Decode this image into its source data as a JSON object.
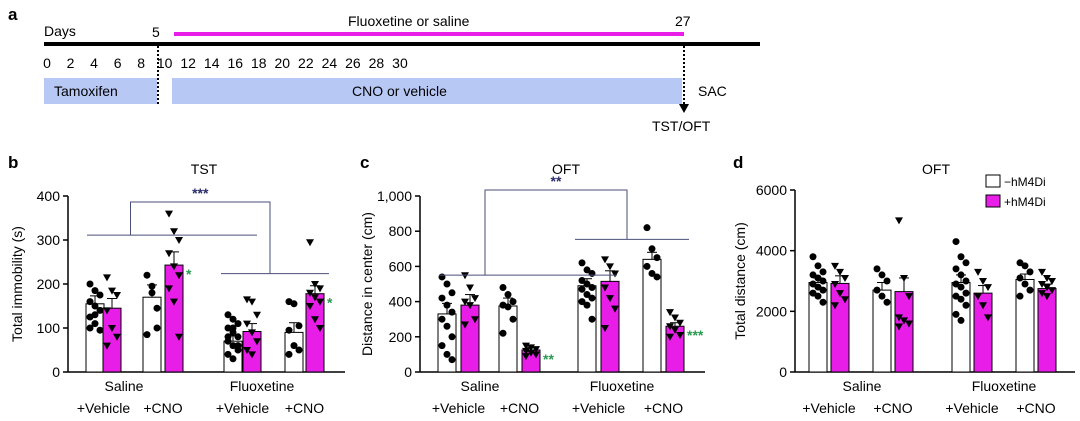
{
  "colors": {
    "magenta": "#e81ee8",
    "timeline_bar": "#b8c8f5",
    "axis": "#000000",
    "bracket": "#4a4f7a",
    "sig_dark": "#2c2c6a",
    "sig_green": "#2a9a52"
  },
  "panel_a": {
    "label": "a",
    "days_label": "Days",
    "start_label": "5",
    "end_label": "27",
    "treatment_label": "Fluoxetine or saline",
    "ticks": [
      "0",
      "2",
      "4",
      "6",
      "8",
      "10",
      "12",
      "14",
      "16",
      "18",
      "20",
      "22",
      "24",
      "26",
      "28",
      "30"
    ],
    "tamoxifen_label": "Tamoxifen",
    "cno_label": "CNO or vehicle",
    "sac_label": "SAC",
    "test_label": "TST/OFT"
  },
  "legend": {
    "empty": "−hM4Di",
    "filled": "+hM4Di"
  },
  "chart_data": [
    {
      "panel": "b",
      "type": "bar",
      "title": "TST",
      "ylabel": "Total immobility (s)",
      "ylim": [
        0,
        400
      ],
      "yticks": [
        "0",
        "100",
        "200",
        "300",
        "400"
      ],
      "groups": [
        "Saline",
        "Fluoxetine"
      ],
      "conditions": [
        "+Vehicle",
        "+CNO",
        "+Vehicle",
        "+CNO"
      ],
      "series": [
        {
          "name": "−hM4Di",
          "values": [
            155,
            170,
            70,
            90
          ],
          "errors": [
            18,
            28,
            12,
            22
          ]
        },
        {
          "name": "+hM4Di",
          "values": [
            145,
            243,
            92,
            178
          ],
          "errors": [
            22,
            30,
            18,
            18
          ]
        }
      ],
      "annotations": [
        {
          "text": "***",
          "between": "Saline vs Fluoxetine",
          "color": "sig_dark"
        },
        {
          "text": "*",
          "at": "Saline +CNO +hM4Di",
          "color": "sig_green"
        },
        {
          "text": "*",
          "at": "Fluoxetine +CNO +hM4Di",
          "color": "sig_green"
        }
      ],
      "points": [
        {
          "bar": 0,
          "values": [
            200,
            185,
            175,
            160,
            150,
            140,
            125,
            110,
            95,
            100,
            130
          ]
        },
        {
          "bar": 1,
          "values": [
            215,
            185,
            175,
            140,
            100,
            80,
            60
          ]
        },
        {
          "bar": 2,
          "values": [
            220,
            195,
            145,
            85,
            180,
            100
          ]
        },
        {
          "bar": 3,
          "values": [
            360,
            320,
            300,
            270,
            240,
            220,
            190,
            160,
            80
          ]
        },
        {
          "bar": 4,
          "values": [
            130,
            120,
            110,
            100,
            90,
            80,
            70,
            60,
            50,
            40,
            30,
            60,
            80,
            100
          ]
        },
        {
          "bar": 5,
          "values": [
            165,
            160,
            130,
            110,
            90,
            70,
            50,
            40
          ]
        },
        {
          "bar": 6,
          "values": [
            160,
            155,
            105,
            95,
            60,
            50,
            40
          ]
        },
        {
          "bar": 7,
          "values": [
            295,
            200,
            190,
            180,
            170,
            160,
            150,
            120,
            100
          ]
        }
      ]
    },
    {
      "panel": "c",
      "type": "bar",
      "title": "OFT",
      "ylabel": "Distance in center (cm)",
      "ylim": [
        0,
        1000
      ],
      "yticks": [
        "0",
        "200",
        "400",
        "600",
        "800",
        "1,000"
      ],
      "groups": [
        "Saline",
        "Fluoxetine"
      ],
      "conditions": [
        "+Vehicle",
        "+CNO",
        "+Vehicle",
        "+CNO"
      ],
      "series": [
        {
          "name": "−hM4Di",
          "values": [
            330,
            375,
            490,
            640
          ],
          "errors": [
            60,
            45,
            40,
            40
          ]
        },
        {
          "name": "+hM4Di",
          "values": [
            380,
            125,
            515,
            260
          ],
          "errors": [
            60,
            15,
            60,
            20
          ]
        }
      ],
      "annotations": [
        {
          "text": "**",
          "between": "Saline vs Fluoxetine",
          "color": "sig_dark"
        },
        {
          "text": "**",
          "at": "Saline +CNO +hM4Di",
          "color": "sig_green"
        },
        {
          "text": "***",
          "at": "Fluoxetine +CNO +hM4Di",
          "color": "sig_green"
        }
      ],
      "points": [
        {
          "bar": 0,
          "values": [
            540,
            500,
            450,
            420,
            380,
            340,
            300,
            260,
            200,
            150,
            100,
            70
          ]
        },
        {
          "bar": 1,
          "values": [
            550,
            480,
            420,
            400,
            380,
            300,
            270
          ]
        },
        {
          "bar": 2,
          "values": [
            480,
            440,
            400,
            380,
            370,
            300,
            220
          ]
        },
        {
          "bar": 3,
          "values": [
            150,
            140,
            130,
            120,
            110,
            100,
            90
          ]
        },
        {
          "bar": 4,
          "values": [
            620,
            580,
            560,
            520,
            500,
            480,
            470,
            440,
            420,
            400,
            380,
            300
          ]
        },
        {
          "bar": 5,
          "values": [
            640,
            600,
            560,
            480,
            420,
            360,
            250
          ]
        },
        {
          "bar": 6,
          "values": [
            820,
            700,
            650,
            600,
            560,
            540
          ]
        },
        {
          "bar": 7,
          "values": [
            340,
            310,
            280,
            260,
            240,
            210,
            200
          ]
        }
      ]
    },
    {
      "panel": "d",
      "type": "bar",
      "title": "OFT",
      "ylabel": "Total distance (cm)",
      "ylim": [
        0,
        6000
      ],
      "yticks": [
        "0",
        "2000",
        "4000",
        "6000"
      ],
      "groups": [
        "Saline",
        "Fluoxetine"
      ],
      "conditions": [
        "+Vehicle",
        "+CNO",
        "+Vehicle",
        "+CNO"
      ],
      "series": [
        {
          "name": "−hM4Di",
          "values": [
            2950,
            2700,
            2950,
            3050
          ],
          "errors": [
            150,
            250,
            250,
            180
          ]
        },
        {
          "name": "+hM4Di",
          "values": [
            2920,
            2650,
            2600,
            2750
          ],
          "errors": [
            250,
            450,
            250,
            150
          ]
        }
      ],
      "annotations": [],
      "points": [
        {
          "bar": 0,
          "values": [
            3800,
            3500,
            3300,
            3200,
            3100,
            3000,
            2900,
            2800,
            2700,
            2600,
            2500,
            2300
          ]
        },
        {
          "bar": 1,
          "values": [
            3500,
            3300,
            3100,
            2900,
            2600,
            2400,
            2200
          ]
        },
        {
          "bar": 2,
          "values": [
            3400,
            3200,
            3000,
            2700,
            2500,
            2300
          ]
        },
        {
          "bar": 3,
          "values": [
            5000,
            3100,
            2500,
            1800,
            1700,
            1600,
            1500
          ]
        },
        {
          "bar": 4,
          "values": [
            4300,
            3800,
            3600,
            3400,
            3200,
            3000,
            2900,
            2800,
            2600,
            2500,
            2400,
            2200,
            1900,
            1700
          ]
        },
        {
          "bar": 5,
          "values": [
            3300,
            3000,
            2800,
            2500,
            2200,
            1800
          ]
        },
        {
          "bar": 6,
          "values": [
            3600,
            3500,
            3300,
            3100,
            2900,
            2700,
            2500
          ]
        },
        {
          "bar": 7,
          "values": [
            3300,
            3100,
            3000,
            2900,
            2800,
            2700,
            2600,
            2500
          ]
        }
      ]
    }
  ]
}
